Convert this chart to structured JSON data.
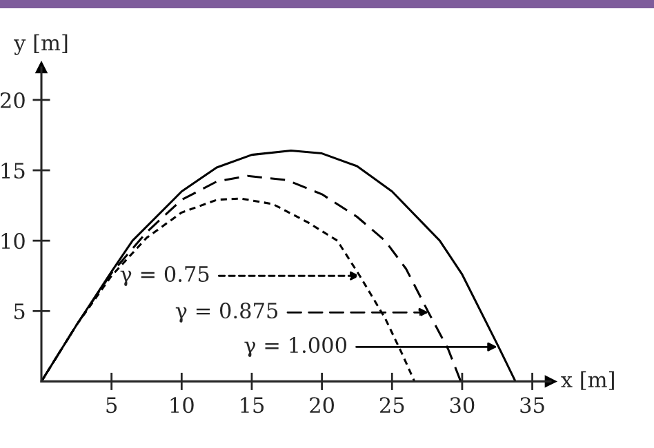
{
  "chart_data": {
    "type": "line",
    "xlabel": "x [m]",
    "ylabel": "y [m]",
    "xlim": [
      0,
      36.3
    ],
    "ylim": [
      0,
      22.3
    ],
    "xticks": [
      5,
      10,
      15,
      20,
      25,
      30,
      35
    ],
    "yticks": [
      5,
      10,
      15,
      20
    ],
    "grid": false,
    "legend": false,
    "marker": "none",
    "series": [
      {
        "color": "#000000",
        "line_style": "dotted",
        "x": [
          0,
          2.5,
          5,
          7.5,
          10,
          12.5,
          14.2,
          16.5,
          19,
          21.1,
          22.7,
          24.5,
          25.7,
          26.6
        ],
        "values": [
          0,
          4,
          7.5,
          10.2,
          12,
          12.9,
          13.0,
          12.6,
          11.3,
          10,
          7.5,
          4.5,
          2,
          0
        ]
      },
      {
        "color": "#000000",
        "line_style": "dashed",
        "x": [
          0,
          2.5,
          5,
          7.5,
          10,
          12.5,
          14.7,
          17.5,
          20,
          22.5,
          24.5,
          26,
          27.6,
          29,
          29.9
        ],
        "values": [
          0,
          4,
          7.7,
          10.6,
          12.9,
          14.2,
          14.6,
          14.3,
          13.3,
          11.7,
          10,
          8,
          4.9,
          2.3,
          0
        ]
      },
      {
        "color": "#000000",
        "line_style": "solid",
        "x": [
          0,
          2.5,
          5,
          6.5,
          10,
          12.5,
          15,
          17.8,
          20,
          22.5,
          25,
          28.4,
          30,
          32.6,
          33.8
        ],
        "values": [
          0,
          4,
          7.8,
          10,
          13.5,
          15.2,
          16.1,
          16.4,
          16.2,
          15.3,
          13.5,
          10,
          7.6,
          2.45,
          0
        ]
      }
    ],
    "annotations": [
      {
        "text": "γ = 0.75",
        "x": 22.7,
        "y": 7.5
      },
      {
        "text": "γ = 0.875",
        "x": 27.6,
        "y": 4.9
      },
      {
        "text": "γ = 1.000",
        "x": 32.5,
        "y": 2.45
      }
    ]
  }
}
